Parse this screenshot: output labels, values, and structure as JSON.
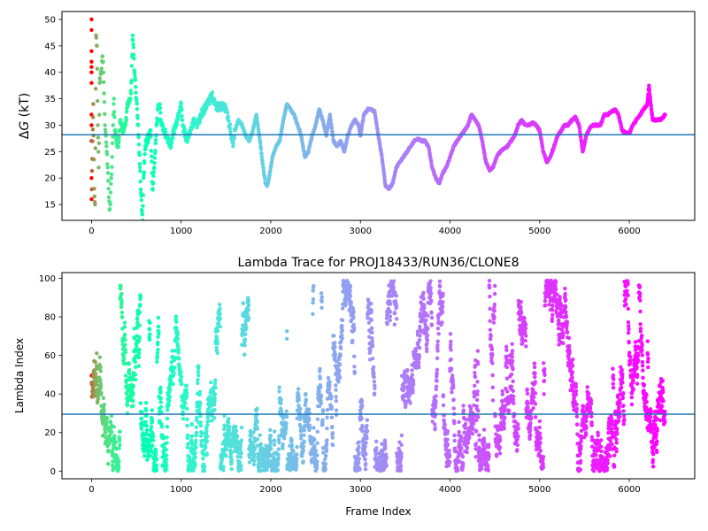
{
  "chart_data": [
    {
      "type": "scatter",
      "title": "",
      "xlabel": "",
      "ylabel_prefix": "Δ",
      "ylabel_italic": "G",
      "ylabel_suffix": " (kT)",
      "xlim": [
        -330,
        6730
      ],
      "ylim": [
        12,
        51.5
      ],
      "xticks": [
        0,
        1000,
        2000,
        3000,
        4000,
        5000,
        6000
      ],
      "yticks": [
        15,
        20,
        25,
        30,
        35,
        40,
        45,
        50
      ],
      "hline": {
        "y": 28.2,
        "color": "#1f77b4"
      },
      "colormap": "rainbow (reversed over frame index)",
      "grid": false,
      "series": [
        {
          "points": [
            [
              0,
              50
            ],
            [
              0,
              48
            ],
            [
              0,
              44
            ],
            [
              0,
              42
            ],
            [
              0,
              41
            ],
            [
              0,
              40
            ],
            [
              0,
              38
            ],
            [
              0,
              32
            ],
            [
              0,
              30
            ],
            [
              0,
              27
            ],
            [
              0,
              20
            ],
            [
              0,
              16
            ],
            [
              20,
              34
            ],
            [
              30,
              18
            ],
            [
              40,
              15
            ],
            [
              50,
              47
            ],
            [
              60,
              45
            ],
            [
              70,
              30
            ],
            [
              80,
              22
            ],
            [
              90,
              38
            ],
            [
              110,
              40
            ],
            [
              120,
              43
            ],
            [
              130,
              42
            ],
            [
              140,
              36
            ],
            [
              150,
              30
            ],
            [
              160,
              28
            ],
            [
              170,
              25
            ],
            [
              180,
              22
            ],
            [
              190,
              18
            ],
            [
              200,
              14
            ],
            [
              210,
              15
            ],
            [
              220,
              20
            ],
            [
              230,
              24
            ],
            [
              240,
              30
            ],
            [
              250,
              35
            ],
            [
              260,
              29
            ],
            [
              280,
              27
            ],
            [
              300,
              26
            ],
            [
              320,
              31
            ],
            [
              340,
              29
            ],
            [
              380,
              30
            ],
            [
              400,
              34
            ],
            [
              420,
              35
            ],
            [
              440,
              36
            ],
            [
              460,
              47
            ],
            [
              480,
              40
            ],
            [
              500,
              35
            ],
            [
              520,
              30
            ],
            [
              540,
              22
            ],
            [
              560,
              14
            ],
            [
              570,
              12
            ],
            [
              580,
              20
            ],
            [
              600,
              26
            ],
            [
              620,
              27
            ],
            [
              640,
              28
            ],
            [
              660,
              29
            ],
            [
              680,
              18
            ],
            [
              700,
              22
            ],
            [
              720,
              28
            ],
            [
              740,
              33
            ],
            [
              760,
              34
            ],
            [
              780,
              30
            ],
            [
              800,
              29
            ],
            [
              840,
              28
            ],
            [
              880,
              26
            ],
            [
              920,
              29
            ],
            [
              960,
              31
            ],
            [
              1000,
              34
            ],
            [
              1020,
              30
            ],
            [
              1060,
              27
            ],
            [
              1100,
              29
            ],
            [
              1140,
              31
            ],
            [
              1180,
              30
            ],
            [
              1220,
              32
            ],
            [
              1260,
              33
            ],
            [
              1300,
              34
            ],
            [
              1340,
              36
            ],
            [
              1380,
              34
            ],
            [
              1420,
              33
            ],
            [
              1460,
              34
            ],
            [
              1500,
              33
            ],
            [
              1540,
              30
            ],
            [
              1580,
              26
            ],
            [
              1600,
              29
            ],
            [
              1640,
              31
            ],
            [
              1680,
              30
            ],
            [
              1720,
              28
            ],
            [
              1760,
              27
            ],
            [
              1800,
              29
            ],
            [
              1840,
              32
            ],
            [
              1880,
              27
            ],
            [
              1900,
              24
            ],
            [
              1940,
              19
            ],
            [
              1960,
              18.5
            ],
            [
              1980,
              20
            ],
            [
              2020,
              24
            ],
            [
              2060,
              26
            ],
            [
              2100,
              27
            ],
            [
              2140,
              31
            ],
            [
              2180,
              34
            ],
            [
              2220,
              33
            ],
            [
              2260,
              32
            ],
            [
              2300,
              30
            ],
            [
              2340,
              28
            ],
            [
              2380,
              24
            ],
            [
              2420,
              25
            ],
            [
              2460,
              28
            ],
            [
              2500,
              30
            ],
            [
              2540,
              33
            ],
            [
              2580,
              31
            ],
            [
              2620,
              28
            ],
            [
              2660,
              32
            ],
            [
              2700,
              27
            ],
            [
              2740,
              26
            ],
            [
              2780,
              27
            ],
            [
              2820,
              25
            ],
            [
              2860,
              28
            ],
            [
              2900,
              30
            ],
            [
              2940,
              31
            ],
            [
              2980,
              30
            ],
            [
              3000,
              28
            ],
            [
              3040,
              32
            ],
            [
              3080,
              33
            ],
            [
              3120,
              33
            ],
            [
              3160,
              32.5
            ],
            [
              3200,
              28
            ],
            [
              3240,
              24
            ],
            [
              3280,
              18.5
            ],
            [
              3320,
              18
            ],
            [
              3360,
              19
            ],
            [
              3400,
              22
            ],
            [
              3440,
              23
            ],
            [
              3480,
              24
            ],
            [
              3520,
              25
            ],
            [
              3560,
              26
            ],
            [
              3600,
              27
            ],
            [
              3640,
              27.5
            ],
            [
              3680,
              27
            ],
            [
              3720,
              27
            ],
            [
              3760,
              26
            ],
            [
              3800,
              22
            ],
            [
              3840,
              20
            ],
            [
              3880,
              19
            ],
            [
              3920,
              21
            ],
            [
              3960,
              22
            ],
            [
              4000,
              24
            ],
            [
              4040,
              26
            ],
            [
              4080,
              27
            ],
            [
              4120,
              28
            ],
            [
              4160,
              29
            ],
            [
              4200,
              30
            ],
            [
              4240,
              32
            ],
            [
              4280,
              31
            ],
            [
              4320,
              30
            ],
            [
              4360,
              27
            ],
            [
              4400,
              23
            ],
            [
              4440,
              21.5
            ],
            [
              4480,
              22
            ],
            [
              4520,
              24
            ],
            [
              4560,
              25
            ],
            [
              4600,
              25.5
            ],
            [
              4640,
              26
            ],
            [
              4680,
              27
            ],
            [
              4720,
              28
            ],
            [
              4760,
              30
            ],
            [
              4800,
              31
            ],
            [
              4840,
              30
            ],
            [
              4880,
              30
            ],
            [
              4920,
              30.5
            ],
            [
              4960,
              30
            ],
            [
              5000,
              29
            ],
            [
              5040,
              25
            ],
            [
              5080,
              23
            ],
            [
              5120,
              24
            ],
            [
              5160,
              26
            ],
            [
              5200,
              28
            ],
            [
              5240,
              29
            ],
            [
              5280,
              30
            ],
            [
              5320,
              30
            ],
            [
              5360,
              31
            ],
            [
              5400,
              31.5
            ],
            [
              5440,
              30
            ],
            [
              5480,
              25
            ],
            [
              5520,
              28
            ],
            [
              5560,
              29.5
            ],
            [
              5600,
              30
            ],
            [
              5640,
              30
            ],
            [
              5680,
              30
            ],
            [
              5720,
              32
            ],
            [
              5760,
              32
            ],
            [
              5800,
              32.5
            ],
            [
              5840,
              33
            ],
            [
              5880,
              32
            ],
            [
              5920,
              29
            ],
            [
              5960,
              28.5
            ],
            [
              6000,
              28.5
            ],
            [
              6040,
              30
            ],
            [
              6080,
              31
            ],
            [
              6120,
              32
            ],
            [
              6160,
              33
            ],
            [
              6200,
              34
            ],
            [
              6220,
              37.5
            ],
            [
              6240,
              34
            ],
            [
              6260,
              31
            ],
            [
              6300,
              31
            ],
            [
              6340,
              31
            ],
            [
              6380,
              31.5
            ],
            [
              6400,
              32
            ]
          ]
        }
      ]
    },
    {
      "type": "scatter",
      "title": "Lambda Trace for PROJ18433/RUN36/CLONE8",
      "xlabel": "Frame Index",
      "ylabel": "Lambda Index",
      "xlim": [
        -330,
        6730
      ],
      "ylim": [
        -4,
        103
      ],
      "xticks": [
        0,
        1000,
        2000,
        3000,
        4000,
        5000,
        6000
      ],
      "yticks": [
        0,
        20,
        40,
        60,
        80,
        100
      ],
      "hline": {
        "y": 29.5,
        "color": "#1f77b4"
      },
      "colormap": "rainbow (reversed over frame index)",
      "grid": false,
      "series": [
        {
          "sampling": "one point per frame, values span the full 0–99 range",
          "x_range": [
            0,
            6400
          ],
          "y_range": [
            0,
            99
          ]
        }
      ]
    }
  ]
}
